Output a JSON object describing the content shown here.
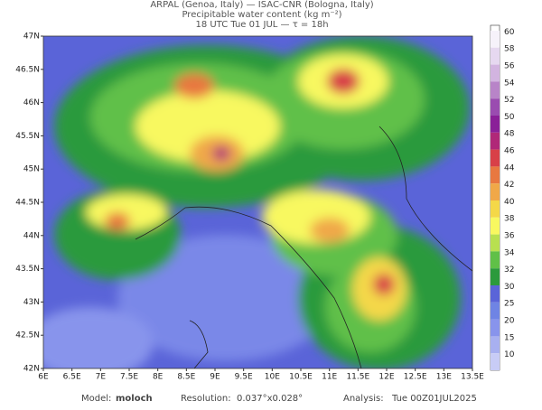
{
  "header": {
    "line1": "ARPAL (Genoa, Italy)  —  ISAC-CNR (Bologna, Italy)",
    "line2": "Precipitable water content (kg m⁻²)",
    "line3": "18 UTC Tue 01 JUL  —  τ = 18h"
  },
  "map": {
    "lat_labels": [
      "47N",
      "46.5N",
      "46N",
      "45.5N",
      "45N",
      "44.5N",
      "44N",
      "43.5N",
      "43N",
      "42.5N",
      "42N"
    ],
    "lon_labels": [
      "6E",
      "6.5E",
      "7E",
      "7.5E",
      "8E",
      "8.5E",
      "9E",
      "9.5E",
      "10E",
      "10.5E",
      "11E",
      "11.5E",
      "12E",
      "12.5E",
      "13E",
      "13.5E"
    ]
  },
  "colorbar": {
    "levels": [
      {
        "value": 60,
        "color": "#f6f2fa"
      },
      {
        "value": 58,
        "color": "#e6d8f0"
      },
      {
        "value": 56,
        "color": "#d2b4e0"
      },
      {
        "value": 54,
        "color": "#b884c8"
      },
      {
        "value": 52,
        "color": "#9a4cb0"
      },
      {
        "value": 50,
        "color": "#8a2098"
      },
      {
        "value": 48,
        "color": "#b02878"
      },
      {
        "value": 46,
        "color": "#d84048"
      },
      {
        "value": 44,
        "color": "#e87840"
      },
      {
        "value": 42,
        "color": "#f0a848"
      },
      {
        "value": 40,
        "color": "#f4d848"
      },
      {
        "value": 38,
        "color": "#f8f860"
      },
      {
        "value": 36,
        "color": "#b8e050"
      },
      {
        "value": 34,
        "color": "#60c048"
      },
      {
        "value": 32,
        "color": "#2c9a3c"
      },
      {
        "value": 30,
        "color": "#5a64d8"
      },
      {
        "value": 25,
        "color": "#6f84e4"
      },
      {
        "value": 20,
        "color": "#8894ec"
      },
      {
        "value": 15,
        "color": "#a8b0f0"
      },
      {
        "value": 10,
        "color": "#c8ccf6"
      }
    ]
  },
  "footer": {
    "model_label": "Model:",
    "model": "moloch",
    "resolution_label": "Resolution:",
    "resolution": "0.037°x0.028°",
    "analysis_label": "Analysis:",
    "analysis": "Tue 00Z01JUL2025"
  }
}
